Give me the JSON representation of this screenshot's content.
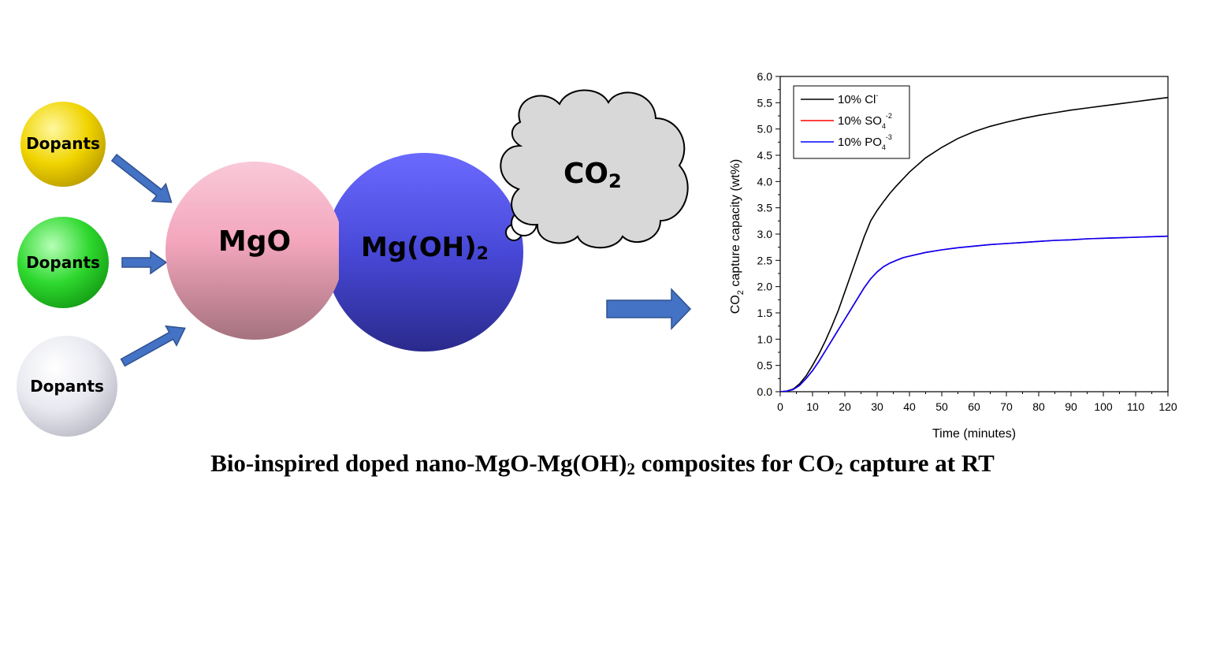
{
  "dopants": [
    {
      "label": "Dopants",
      "color": "#f0d400"
    },
    {
      "label": "Dopants",
      "color": "#2ed82e"
    },
    {
      "label": "Dopants",
      "color": "#e6e8f0"
    }
  ],
  "composite": {
    "mgo_label": "MgO",
    "mgoh_label_main": "Mg(OH)",
    "mgoh_label_sub": "2",
    "mgo_color": "#f2a9bf",
    "mgoh_color": "#4a4ad8"
  },
  "cloud": {
    "label_main": "CO",
    "label_sub": "2"
  },
  "caption": {
    "part1": "Bio-inspired doped nano-MgO-Mg(OH)",
    "sub1": "2",
    "part2": " composites for CO",
    "sub2": "2",
    "part3": " capture at RT"
  },
  "chart_data": {
    "type": "line",
    "xlabel": "Time (minutes)",
    "ylabel_main": "CO",
    "ylabel_sub": "2",
    "ylabel_rest": " capture capacity (wt%)",
    "xlim": [
      0,
      120
    ],
    "ylim": [
      0,
      6
    ],
    "x_ticks": [
      "0",
      "10",
      "20",
      "30",
      "40",
      "50",
      "60",
      "70",
      "80",
      "90",
      "100",
      "110",
      "120"
    ],
    "y_ticks": [
      "0.0",
      "0.5",
      "1.0",
      "1.5",
      "2.0",
      "2.5",
      "3.0",
      "3.5",
      "4.0",
      "4.5",
      "5.0",
      "5.5",
      "6.0"
    ],
    "legend": "top-left",
    "series": [
      {
        "name": "10% Cl",
        "sup": "-",
        "sub": "",
        "color": "#000000",
        "x": [
          0,
          2,
          4,
          6,
          8,
          10,
          12,
          14,
          16,
          18,
          20,
          22,
          24,
          26,
          28,
          30,
          32,
          34,
          36,
          38,
          40,
          45,
          50,
          55,
          60,
          65,
          70,
          75,
          80,
          85,
          90,
          95,
          100,
          105,
          110,
          115,
          120
        ],
        "y": [
          0,
          0.01,
          0.05,
          0.15,
          0.3,
          0.5,
          0.72,
          0.97,
          1.25,
          1.55,
          1.9,
          2.25,
          2.6,
          2.95,
          3.25,
          3.45,
          3.62,
          3.78,
          3.92,
          4.05,
          4.18,
          4.45,
          4.65,
          4.82,
          4.95,
          5.05,
          5.13,
          5.2,
          5.26,
          5.31,
          5.36,
          5.4,
          5.44,
          5.48,
          5.52,
          5.56,
          5.6
        ]
      },
      {
        "name": "10% SO",
        "sup": "-2",
        "sub": "4",
        "color": "#ff0000",
        "x": [
          0,
          2,
          4,
          6,
          8,
          10,
          12,
          14,
          16,
          18,
          20,
          22,
          24,
          26,
          28,
          30,
          32,
          34,
          36,
          38,
          40,
          45,
          50,
          55,
          60,
          65,
          70,
          75,
          80,
          85,
          90,
          95,
          100,
          105,
          110,
          115,
          120
        ],
        "y": [
          0,
          0.01,
          0.04,
          0.12,
          0.25,
          0.4,
          0.58,
          0.78,
          0.98,
          1.18,
          1.38,
          1.58,
          1.78,
          1.98,
          2.15,
          2.28,
          2.38,
          2.45,
          2.5,
          2.55,
          2.58,
          2.65,
          2.7,
          2.74,
          2.77,
          2.8,
          2.82,
          2.84,
          2.86,
          2.88,
          2.89,
          2.91,
          2.92,
          2.93,
          2.94,
          2.95,
          2.96
        ]
      },
      {
        "name": "10% PO",
        "sup": "-3",
        "sub": "4",
        "color": "#0000ff",
        "x": [
          0,
          2,
          4,
          6,
          8,
          10,
          12,
          14,
          16,
          18,
          20,
          22,
          24,
          26,
          28,
          30,
          32,
          34,
          36,
          38,
          40,
          45,
          50,
          55,
          60,
          65,
          70,
          75,
          80,
          85,
          90,
          95,
          100,
          105,
          110,
          115,
          120
        ],
        "y": [
          0,
          0.01,
          0.04,
          0.12,
          0.25,
          0.4,
          0.58,
          0.78,
          0.98,
          1.18,
          1.38,
          1.58,
          1.78,
          1.98,
          2.15,
          2.28,
          2.38,
          2.45,
          2.5,
          2.55,
          2.58,
          2.65,
          2.7,
          2.74,
          2.77,
          2.8,
          2.82,
          2.84,
          2.86,
          2.88,
          2.89,
          2.91,
          2.92,
          2.93,
          2.94,
          2.95,
          2.96
        ]
      }
    ]
  }
}
